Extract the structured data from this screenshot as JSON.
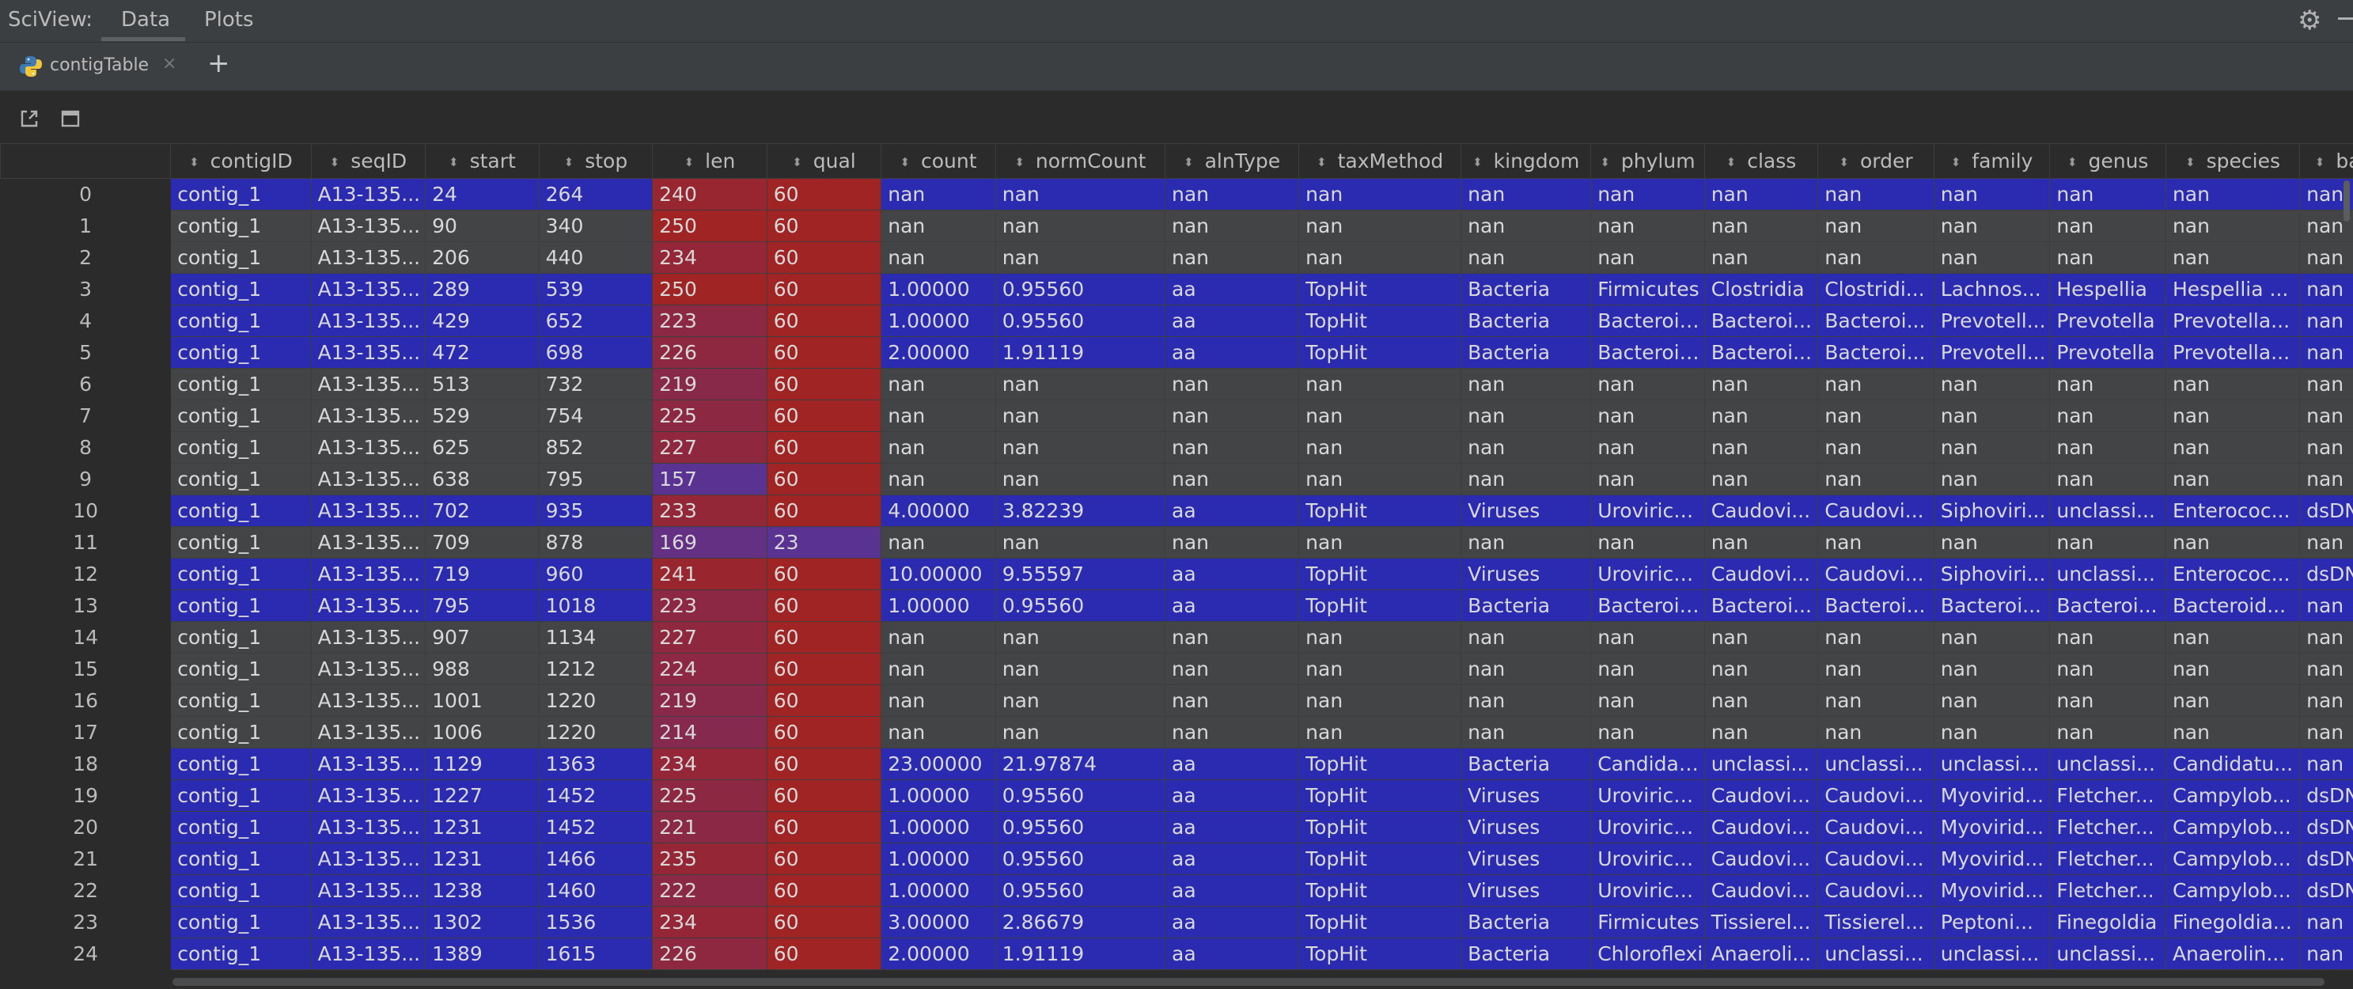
{
  "app": {
    "title": "SciView:"
  },
  "tabs": [
    {
      "label": "Data"
    },
    {
      "label": "Plots"
    }
  ],
  "icons": {
    "settings": "gear-icon",
    "minimize": "minimize-icon",
    "file": "python-icon",
    "close": "close-icon",
    "add": "plus-icon",
    "open_external": "open-external-icon",
    "window": "window-icon"
  },
  "file_tab": {
    "label": "contigTable",
    "close": "×",
    "add": "+"
  },
  "colors": {
    "accent_blue": "#2b2bb2",
    "nan_gray": "#434446",
    "qual_red": "#a02424",
    "qual_purple": "#5a3292"
  },
  "table": {
    "columns": [
      "contigID",
      "seqID",
      "start",
      "stop",
      "len",
      "qual",
      "count",
      "normCount",
      "alnType",
      "taxMethod",
      "kingdom",
      "phylum",
      "class",
      "order",
      "family",
      "genus",
      "species",
      "balt"
    ],
    "rows": [
      {
        "idx": "0",
        "hl": "blue",
        "cells": [
          "contig_1",
          "A13-135...",
          "24",
          "264",
          "240",
          "60",
          "nan",
          "nan",
          "nan",
          "nan",
          "nan",
          "nan",
          "nan",
          "nan",
          "nan",
          "nan",
          "nan",
          "nan"
        ]
      },
      {
        "idx": "1",
        "hl": "gray",
        "cells": [
          "contig_1",
          "A13-135...",
          "90",
          "340",
          "250",
          "60",
          "nan",
          "nan",
          "nan",
          "nan",
          "nan",
          "nan",
          "nan",
          "nan",
          "nan",
          "nan",
          "nan",
          "nan"
        ]
      },
      {
        "idx": "2",
        "hl": "gray",
        "cells": [
          "contig_1",
          "A13-135...",
          "206",
          "440",
          "234",
          "60",
          "nan",
          "nan",
          "nan",
          "nan",
          "nan",
          "nan",
          "nan",
          "nan",
          "nan",
          "nan",
          "nan",
          "nan"
        ]
      },
      {
        "idx": "3",
        "hl": "blue",
        "cells": [
          "contig_1",
          "A13-135...",
          "289",
          "539",
          "250",
          "60",
          "1.00000",
          "0.95560",
          "aa",
          "TopHit",
          "Bacteria",
          "Firmicutes",
          "Clostridia",
          "Clostridi...",
          "Lachnos...",
          "Hespellia",
          "Hespellia ...",
          "nan"
        ]
      },
      {
        "idx": "4",
        "hl": "blue",
        "cells": [
          "contig_1",
          "A13-135...",
          "429",
          "652",
          "223",
          "60",
          "1.00000",
          "0.95560",
          "aa",
          "TopHit",
          "Bacteria",
          "Bacteroid...",
          "Bacteroi...",
          "Bacteroi...",
          "Prevotell...",
          "Prevotella",
          "Prevotella...",
          "nan"
        ]
      },
      {
        "idx": "5",
        "hl": "blue",
        "cells": [
          "contig_1",
          "A13-135...",
          "472",
          "698",
          "226",
          "60",
          "2.00000",
          "1.91119",
          "aa",
          "TopHit",
          "Bacteria",
          "Bacteroid...",
          "Bacteroi...",
          "Bacteroi...",
          "Prevotell...",
          "Prevotella",
          "Prevotella...",
          "nan"
        ]
      },
      {
        "idx": "6",
        "hl": "gray",
        "cells": [
          "contig_1",
          "A13-135...",
          "513",
          "732",
          "219",
          "60",
          "nan",
          "nan",
          "nan",
          "nan",
          "nan",
          "nan",
          "nan",
          "nan",
          "nan",
          "nan",
          "nan",
          "nan"
        ]
      },
      {
        "idx": "7",
        "hl": "gray",
        "cells": [
          "contig_1",
          "A13-135...",
          "529",
          "754",
          "225",
          "60",
          "nan",
          "nan",
          "nan",
          "nan",
          "nan",
          "nan",
          "nan",
          "nan",
          "nan",
          "nan",
          "nan",
          "nan"
        ]
      },
      {
        "idx": "8",
        "hl": "gray",
        "cells": [
          "contig_1",
          "A13-135...",
          "625",
          "852",
          "227",
          "60",
          "nan",
          "nan",
          "nan",
          "nan",
          "nan",
          "nan",
          "nan",
          "nan",
          "nan",
          "nan",
          "nan",
          "nan"
        ]
      },
      {
        "idx": "9",
        "hl": "gray",
        "cells": [
          "contig_1",
          "A13-135...",
          "638",
          "795",
          "157",
          "60",
          "nan",
          "nan",
          "nan",
          "nan",
          "nan",
          "nan",
          "nan",
          "nan",
          "nan",
          "nan",
          "nan",
          "nan"
        ]
      },
      {
        "idx": "10",
        "hl": "blue",
        "cells": [
          "contig_1",
          "A13-135...",
          "702",
          "935",
          "233",
          "60",
          "4.00000",
          "3.82239",
          "aa",
          "TopHit",
          "Viruses",
          "Uroviricota",
          "Caudovi...",
          "Caudovi...",
          "Siphoviri...",
          "unclassi...",
          "Enterococ...",
          "dsDNA"
        ]
      },
      {
        "idx": "11",
        "hl": "gray",
        "cells": [
          "contig_1",
          "A13-135...",
          "709",
          "878",
          "169",
          "23",
          "nan",
          "nan",
          "nan",
          "nan",
          "nan",
          "nan",
          "nan",
          "nan",
          "nan",
          "nan",
          "nan",
          "nan"
        ]
      },
      {
        "idx": "12",
        "hl": "blue",
        "cells": [
          "contig_1",
          "A13-135...",
          "719",
          "960",
          "241",
          "60",
          "10.00000",
          "9.55597",
          "aa",
          "TopHit",
          "Viruses",
          "Uroviricota",
          "Caudovi...",
          "Caudovi...",
          "Siphoviri...",
          "unclassi...",
          "Enterococ...",
          "dsDNA"
        ]
      },
      {
        "idx": "13",
        "hl": "blue",
        "cells": [
          "contig_1",
          "A13-135...",
          "795",
          "1018",
          "223",
          "60",
          "1.00000",
          "0.95560",
          "aa",
          "TopHit",
          "Bacteria",
          "Bacteroid...",
          "Bacteroi...",
          "Bacteroi...",
          "Bacteroi...",
          "Bacteroi...",
          "Bacteroid...",
          "nan"
        ]
      },
      {
        "idx": "14",
        "hl": "gray",
        "cells": [
          "contig_1",
          "A13-135...",
          "907",
          "1134",
          "227",
          "60",
          "nan",
          "nan",
          "nan",
          "nan",
          "nan",
          "nan",
          "nan",
          "nan",
          "nan",
          "nan",
          "nan",
          "nan"
        ]
      },
      {
        "idx": "15",
        "hl": "gray",
        "cells": [
          "contig_1",
          "A13-135...",
          "988",
          "1212",
          "224",
          "60",
          "nan",
          "nan",
          "nan",
          "nan",
          "nan",
          "nan",
          "nan",
          "nan",
          "nan",
          "nan",
          "nan",
          "nan"
        ]
      },
      {
        "idx": "16",
        "hl": "gray",
        "cells": [
          "contig_1",
          "A13-135...",
          "1001",
          "1220",
          "219",
          "60",
          "nan",
          "nan",
          "nan",
          "nan",
          "nan",
          "nan",
          "nan",
          "nan",
          "nan",
          "nan",
          "nan",
          "nan"
        ]
      },
      {
        "idx": "17",
        "hl": "gray",
        "cells": [
          "contig_1",
          "A13-135...",
          "1006",
          "1220",
          "214",
          "60",
          "nan",
          "nan",
          "nan",
          "nan",
          "nan",
          "nan",
          "nan",
          "nan",
          "nan",
          "nan",
          "nan",
          "nan"
        ]
      },
      {
        "idx": "18",
        "hl": "blue",
        "cells": [
          "contig_1",
          "A13-135...",
          "1129",
          "1363",
          "234",
          "60",
          "23.00000",
          "21.97874",
          "aa",
          "TopHit",
          "Bacteria",
          "Candidat...",
          "unclassi...",
          "unclassi...",
          "unclassi...",
          "unclassi...",
          "Candidatu...",
          "nan"
        ]
      },
      {
        "idx": "19",
        "hl": "blue",
        "cells": [
          "contig_1",
          "A13-135...",
          "1227",
          "1452",
          "225",
          "60",
          "1.00000",
          "0.95560",
          "aa",
          "TopHit",
          "Viruses",
          "Uroviricota",
          "Caudovi...",
          "Caudovi...",
          "Myovirid...",
          "Fletcher...",
          "Campylob...",
          "dsDNA"
        ]
      },
      {
        "idx": "20",
        "hl": "blue",
        "cells": [
          "contig_1",
          "A13-135...",
          "1231",
          "1452",
          "221",
          "60",
          "1.00000",
          "0.95560",
          "aa",
          "TopHit",
          "Viruses",
          "Uroviricota",
          "Caudovi...",
          "Caudovi...",
          "Myovirid...",
          "Fletcher...",
          "Campylob...",
          "dsDNA"
        ]
      },
      {
        "idx": "21",
        "hl": "blue",
        "cells": [
          "contig_1",
          "A13-135...",
          "1231",
          "1466",
          "235",
          "60",
          "1.00000",
          "0.95560",
          "aa",
          "TopHit",
          "Viruses",
          "Uroviricota",
          "Caudovi...",
          "Caudovi...",
          "Myovirid...",
          "Fletcher...",
          "Campylob...",
          "dsDNA"
        ]
      },
      {
        "idx": "22",
        "hl": "blue",
        "cells": [
          "contig_1",
          "A13-135...",
          "1238",
          "1460",
          "222",
          "60",
          "1.00000",
          "0.95560",
          "aa",
          "TopHit",
          "Viruses",
          "Uroviricota",
          "Caudovi...",
          "Caudovi...",
          "Myovirid...",
          "Fletcher...",
          "Campylob...",
          "dsDNA"
        ]
      },
      {
        "idx": "23",
        "hl": "blue",
        "cells": [
          "contig_1",
          "A13-135...",
          "1302",
          "1536",
          "234",
          "60",
          "3.00000",
          "2.86679",
          "aa",
          "TopHit",
          "Bacteria",
          "Firmicutes",
          "Tissierel...",
          "Tissierel...",
          "Peptoni...",
          "Finegoldia",
          "Finegoldia...",
          "nan"
        ]
      },
      {
        "idx": "24",
        "hl": "blue",
        "cells": [
          "contig_1",
          "A13-135...",
          "1389",
          "1615",
          "226",
          "60",
          "2.00000",
          "1.91119",
          "aa",
          "TopHit",
          "Bacteria",
          "Chloroflexi",
          "Anaeroli...",
          "unclassi...",
          "unclassi...",
          "unclassi...",
          "Anaerolin...",
          "nan"
        ]
      }
    ]
  }
}
